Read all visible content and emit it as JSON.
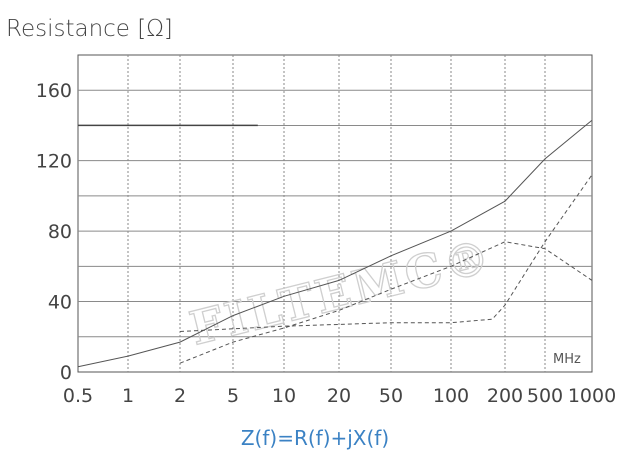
{
  "chart_data": {
    "type": "line",
    "title": "Resistance [Ω]",
    "xlabel": "",
    "ylabel": "Resistance [Ω]",
    "x_unit": "MHz",
    "x_scale": "log",
    "xlim": [
      0.5,
      1000
    ],
    "ylim": [
      0,
      180
    ],
    "x_ticks": [
      0.5,
      1,
      2,
      5,
      10,
      20,
      50,
      100,
      200,
      500,
      1000
    ],
    "x_tick_labels": [
      "0.5",
      "1",
      "2",
      "5",
      "10",
      "20",
      "50",
      "100",
      "200",
      "500",
      "1000"
    ],
    "y_ticks": [
      0,
      40,
      80,
      120,
      160
    ],
    "y_tick_labels": [
      "0",
      "40",
      "80",
      "120",
      "160"
    ],
    "grid": true,
    "series": [
      {
        "style": "solid",
        "color": "#444444",
        "points": [
          [
            0.5,
            140
          ],
          [
            7,
            140
          ]
        ]
      },
      {
        "style": "solid",
        "color": "#555555",
        "points": [
          [
            0.5,
            3
          ],
          [
            1,
            9
          ],
          [
            2,
            17
          ],
          [
            5,
            32
          ],
          [
            10,
            43
          ],
          [
            20,
            52
          ],
          [
            50,
            66
          ],
          [
            100,
            80
          ],
          [
            200,
            97
          ],
          [
            500,
            121
          ],
          [
            1000,
            143
          ]
        ]
      },
      {
        "style": "dashed",
        "color": "#555555",
        "points": [
          [
            2,
            5
          ],
          [
            5,
            17
          ],
          [
            10,
            25
          ],
          [
            20,
            35
          ],
          [
            50,
            47
          ],
          [
            100,
            60
          ],
          [
            200,
            74
          ],
          [
            500,
            70
          ],
          [
            1000,
            52
          ]
        ]
      },
      {
        "style": "dashed",
        "color": "#555555",
        "points": [
          [
            2,
            23
          ],
          [
            10,
            26
          ],
          [
            50,
            28
          ],
          [
            100,
            28
          ],
          [
            170,
            30
          ],
          [
            200,
            38
          ],
          [
            500,
            74
          ],
          [
            1000,
            112
          ]
        ]
      }
    ],
    "annotations": [
      "Z(f)=R(f)+jX(f)"
    ],
    "watermark": "FILTEMC®",
    "colors": {
      "grid": "#8a8a8a",
      "formula": "#3b82c4"
    }
  }
}
